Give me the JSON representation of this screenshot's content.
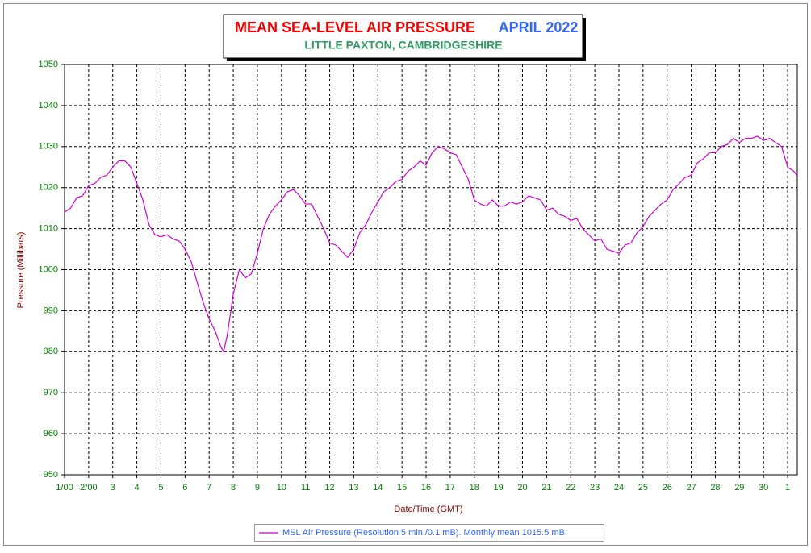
{
  "chart_data": {
    "type": "line",
    "title": "MEAN SEA-LEVEL AIR PRESSURE",
    "title_period": "APRIL 2022",
    "subtitle": "LITTLE PAXTON, CAMBRIDGESHIRE",
    "x_label": "Date/Time (GMT)",
    "y_label": "Pressure (Millibars)",
    "x": [
      0,
      0.25,
      0.5,
      0.75,
      1,
      1.25,
      1.5,
      1.75,
      2,
      2.25,
      2.5,
      2.75,
      3,
      3.25,
      3.5,
      3.75,
      4,
      4.25,
      4.5,
      4.75,
      5,
      5.25,
      5.5,
      5.75,
      6,
      6.25,
      6.5,
      6.6,
      6.75,
      7,
      7.25,
      7.5,
      7.75,
      8,
      8.25,
      8.5,
      8.75,
      9,
      9.25,
      9.5,
      9.75,
      10,
      10.25,
      10.5,
      10.75,
      11,
      11.25,
      11.5,
      11.75,
      12,
      12.25,
      12.5,
      12.75,
      13,
      13.25,
      13.5,
      13.75,
      14,
      14.25,
      14.5,
      14.75,
      15,
      15.25,
      15.5,
      15.75,
      16,
      16.25,
      16.5,
      16.75,
      17,
      17.25,
      17.5,
      17.75,
      18,
      18.25,
      18.5,
      18.75,
      19,
      19.25,
      19.5,
      19.75,
      20,
      20.25,
      20.5,
      20.75,
      21,
      21.25,
      21.5,
      21.75,
      22,
      22.25,
      22.5,
      22.75,
      23,
      23.25,
      23.5,
      23.75,
      24,
      24.25,
      24.5,
      24.75,
      25,
      25.25,
      25.5,
      25.75,
      26,
      26.25,
      26.5,
      26.75,
      27,
      27.25,
      27.5,
      27.75,
      28,
      28.25,
      28.5,
      28.75,
      29,
      29.25,
      29.5,
      29.75,
      30,
      30.25,
      30.4
    ],
    "series": [
      {
        "name": "MSL Air Pressure (Resolution 5 min./0.1 mB). Monthly mean 1015.5 mB.",
        "color": "#cc00cc",
        "values": [
          1014,
          1015,
          1017.5,
          1018,
          1020.5,
          1021,
          1022.5,
          1023,
          1025,
          1026.5,
          1026.5,
          1025,
          1021,
          1017,
          1011,
          1008.5,
          1008,
          1008.5,
          1007.5,
          1007,
          1005,
          1002,
          997,
          992,
          988,
          985,
          981,
          980,
          984,
          994,
          1000,
          998,
          999,
          1004,
          1010,
          1013.5,
          1015.5,
          1017,
          1019,
          1019.5,
          1018,
          1016,
          1016,
          1013,
          1010,
          1006.5,
          1006,
          1004.5,
          1003,
          1005,
          1009,
          1011,
          1014,
          1016.5,
          1019,
          1020,
          1021.5,
          1022,
          1024,
          1025,
          1026.5,
          1025.5,
          1028.5,
          1030,
          1029.5,
          1028.5,
          1028,
          1025,
          1022,
          1017,
          1016,
          1015.5,
          1017,
          1015.5,
          1015.5,
          1016.5,
          1016,
          1016.5,
          1018,
          1017.5,
          1017,
          1014.5,
          1015,
          1013.5,
          1013,
          1012,
          1012.5,
          1010,
          1008.5,
          1007,
          1007.5,
          1005,
          1004.5,
          1004,
          1006,
          1006.5,
          1009,
          1010.5,
          1013,
          1014.5,
          1016,
          1017,
          1019.5,
          1021,
          1022.5,
          1023,
          1026,
          1027,
          1028.5,
          1028.5,
          1030,
          1030.5,
          1032,
          1031,
          1032,
          1032,
          1032.5,
          1031.5,
          1032,
          1031,
          1030,
          1025,
          1024,
          1023
        ]
      }
    ],
    "xlim": [
      0,
      30.4
    ],
    "xticks": [
      {
        "value": 0,
        "label": "1/00"
      },
      {
        "value": 1,
        "label": "2/00"
      },
      {
        "value": 2,
        "label": "3"
      },
      {
        "value": 3,
        "label": "4"
      },
      {
        "value": 4,
        "label": "5"
      },
      {
        "value": 5,
        "label": "6"
      },
      {
        "value": 6,
        "label": "7"
      },
      {
        "value": 7,
        "label": "8"
      },
      {
        "value": 8,
        "label": "9"
      },
      {
        "value": 9,
        "label": "10"
      },
      {
        "value": 10,
        "label": "11"
      },
      {
        "value": 11,
        "label": "12"
      },
      {
        "value": 12,
        "label": "13"
      },
      {
        "value": 13,
        "label": "14"
      },
      {
        "value": 14,
        "label": "15"
      },
      {
        "value": 15,
        "label": "16"
      },
      {
        "value": 16,
        "label": "17"
      },
      {
        "value": 17,
        "label": "18"
      },
      {
        "value": 18,
        "label": "19"
      },
      {
        "value": 19,
        "label": "20"
      },
      {
        "value": 20,
        "label": "21"
      },
      {
        "value": 21,
        "label": "22"
      },
      {
        "value": 22,
        "label": "23"
      },
      {
        "value": 23,
        "label": "24"
      },
      {
        "value": 24,
        "label": "25"
      },
      {
        "value": 25,
        "label": "26"
      },
      {
        "value": 26,
        "label": "27"
      },
      {
        "value": 27,
        "label": "28"
      },
      {
        "value": 28,
        "label": "29"
      },
      {
        "value": 29,
        "label": "30"
      },
      {
        "value": 30,
        "label": "1"
      }
    ],
    "ylim": [
      950,
      1050
    ],
    "yticks": [
      950,
      960,
      970,
      980,
      990,
      1000,
      1010,
      1020,
      1030,
      1040,
      1050
    ],
    "grid": true
  }
}
